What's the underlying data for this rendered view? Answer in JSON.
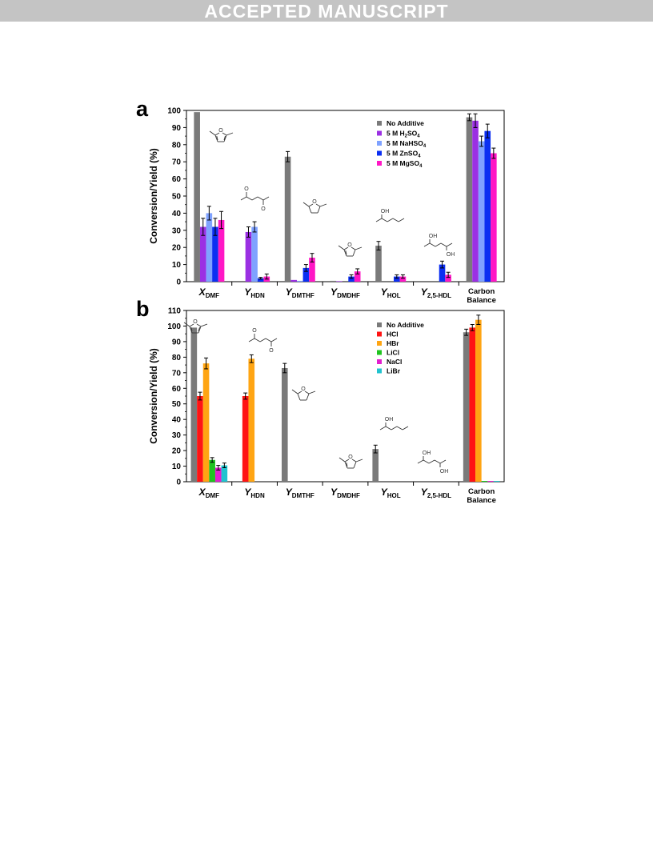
{
  "header": {
    "banner": "ACCEPTED MANUSCRIPT"
  },
  "colors": {
    "No Additive": "#7a7a7a",
    "5 M H2SO4": "#9b30e3",
    "5 M NaHSO4": "#7fa2ff",
    "5 M ZnSO4": "#0b2ff2",
    "5 M MgSO4": "#ff17c5",
    "HCl": "#ff1414",
    "HBr": "#ffa513",
    "LiCl": "#1fc41f",
    "NaCl": "#e31fcf",
    "LiBr": "#21c3cf"
  },
  "molecule_icons": [
    "dimethylfuran",
    "hexanedione",
    "dimethyltetrahydrofuran",
    "dimethyldihydrofuran",
    "hexanol",
    "hexanediol"
  ],
  "chart_data": [
    {
      "panel": "a",
      "type": "bar",
      "ylabel": "Conversion/Yield (%)",
      "ylim": [
        0,
        100
      ],
      "yticks": [
        0,
        10,
        20,
        30,
        40,
        50,
        60,
        70,
        80,
        90,
        100
      ],
      "categories": [
        {
          "main": "X",
          "sub": "DMF"
        },
        {
          "main": "Y",
          "sub": "HDN"
        },
        {
          "main": "Y",
          "sub": "DMTHF"
        },
        {
          "main": "Y",
          "sub": "DMDHF"
        },
        {
          "main": "Y",
          "sub": "HOL"
        },
        {
          "main": "Y",
          "sub": "2,5-HDL"
        },
        {
          "main": "Carbon",
          "line2": "Balance"
        }
      ],
      "legend_position": "top-right",
      "series": [
        {
          "name": "No Additive",
          "legend": {
            "main": "No Additive"
          },
          "values": [
            99,
            0,
            73,
            0.5,
            21,
            0,
            96
          ],
          "errors": [
            0,
            0,
            3,
            0,
            2.5,
            0,
            2
          ]
        },
        {
          "name": "5 M H2SO4",
          "legend": {
            "main": "5 M H",
            "sub": "2",
            "tail": "SO",
            "sub2": "4"
          },
          "values": [
            32,
            29,
            1,
            0.3,
            0,
            0,
            94
          ],
          "errors": [
            5,
            3,
            0,
            0,
            0,
            0,
            4
          ]
        },
        {
          "name": "5 M NaHSO4",
          "legend": {
            "main": "5 M NaHSO",
            "sub": "4"
          },
          "values": [
            40,
            32,
            0.5,
            0,
            0,
            0,
            82
          ],
          "errors": [
            4,
            3,
            0,
            0,
            0,
            0,
            3
          ]
        },
        {
          "name": "5 M ZnSO4",
          "legend": {
            "main": "5 M ZnSO",
            "sub": "4"
          },
          "values": [
            32,
            2,
            8,
            3,
            3,
            10,
            88
          ],
          "errors": [
            5,
            0.5,
            2,
            1,
            1,
            2,
            4
          ]
        },
        {
          "name": "5 M MgSO4",
          "legend": {
            "main": "5 M MgSO",
            "sub": "4"
          },
          "values": [
            36,
            3,
            14,
            6,
            3,
            4,
            75
          ],
          "errors": [
            5,
            1.5,
            2.5,
            1.5,
            1,
            1.5,
            3
          ]
        }
      ]
    },
    {
      "panel": "b",
      "type": "bar",
      "ylabel": "Conversion/Yield (%)",
      "ylim": [
        0,
        110
      ],
      "yticks": [
        0,
        10,
        20,
        30,
        40,
        50,
        60,
        70,
        80,
        90,
        100,
        110
      ],
      "categories": [
        {
          "main": "X",
          "sub": "DMF"
        },
        {
          "main": "Y",
          "sub": "HDN"
        },
        {
          "main": "Y",
          "sub": "DMTHF"
        },
        {
          "main": "Y",
          "sub": "DMDHF"
        },
        {
          "main": "Y",
          "sub": "HOL"
        },
        {
          "main": "Y",
          "sub": "2,5-HDL"
        },
        {
          "main": "Carbon",
          "line2": "Balance"
        }
      ],
      "legend_position": "top-right",
      "series": [
        {
          "name": "No Additive",
          "legend": {
            "main": "No Additive"
          },
          "values": [
            99,
            0,
            73,
            0,
            21,
            0,
            96
          ],
          "errors": [
            0,
            0,
            3,
            0,
            2.5,
            0,
            2
          ]
        },
        {
          "name": "HCl",
          "legend": {
            "main": "HCl"
          },
          "values": [
            55,
            55,
            0,
            0,
            0,
            0,
            99
          ],
          "errors": [
            2.5,
            2,
            0,
            0,
            0,
            0,
            2
          ]
        },
        {
          "name": "HBr",
          "legend": {
            "main": "HBr"
          },
          "values": [
            76,
            79,
            0,
            0,
            0,
            0,
            104
          ],
          "errors": [
            3.5,
            2.5,
            0,
            0,
            0,
            0,
            3
          ]
        },
        {
          "name": "LiCl",
          "legend": {
            "main": "LiCl"
          },
          "values": [
            14,
            0,
            0,
            0,
            0,
            0,
            0.5
          ],
          "errors": [
            1.5,
            0,
            0,
            0,
            0,
            0,
            0
          ]
        },
        {
          "name": "NaCl",
          "legend": {
            "main": "NaCl"
          },
          "values": [
            9,
            0,
            0,
            0,
            0,
            0,
            0.5
          ],
          "errors": [
            1.5,
            0,
            0,
            0,
            0,
            0,
            0
          ]
        },
        {
          "name": "LiBr",
          "legend": {
            "main": "LiBr"
          },
          "values": [
            10.5,
            0,
            0,
            0,
            0,
            0,
            0.5
          ],
          "errors": [
            1.5,
            0,
            0,
            0,
            0,
            0,
            0
          ]
        }
      ]
    }
  ]
}
